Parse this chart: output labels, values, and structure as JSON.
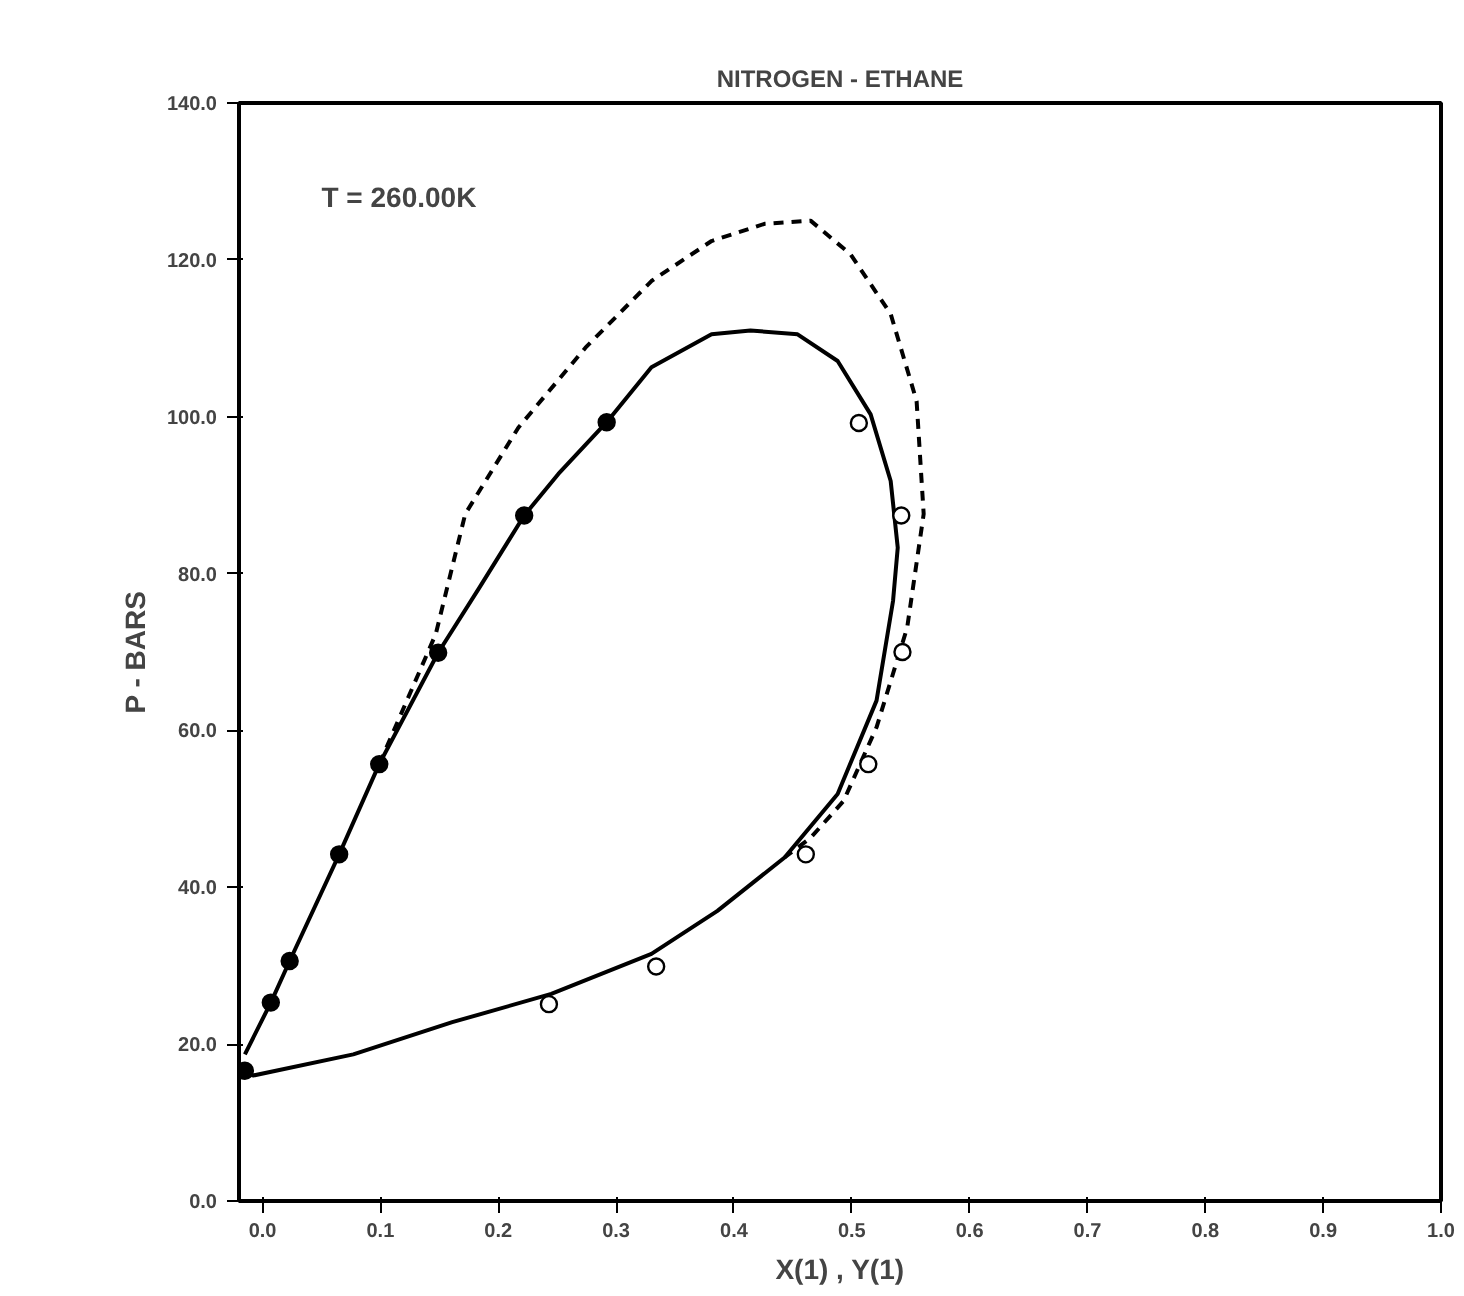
{
  "chart_data": {
    "type": "line",
    "title": "NITROGEN - ETHANE",
    "xlabel": "X(1) , Y(1)",
    "ylabel": "P - BARS",
    "annotations": [
      "T = 260.00K"
    ],
    "xlim": [
      -0.02,
      1.0
    ],
    "ylim": [
      0,
      140
    ],
    "xticks": [
      {
        "value": 0,
        "label": "0.0"
      },
      {
        "value": 0.1,
        "label": "0.1"
      },
      {
        "value": 0.2,
        "label": "0.2"
      },
      {
        "value": 0.3,
        "label": "0.3"
      },
      {
        "value": 0.4,
        "label": "0.4"
      },
      {
        "value": 0.5,
        "label": "0.5"
      },
      {
        "value": 0.6,
        "label": "0.6"
      },
      {
        "value": 0.7,
        "label": "0.7"
      },
      {
        "value": 0.8,
        "label": "0.8"
      },
      {
        "value": 0.9,
        "label": "0.9"
      },
      {
        "value": 1.0,
        "label": "1.0"
      }
    ],
    "yticks": [
      {
        "value": 0,
        "label": "0.0"
      },
      {
        "value": 20,
        "label": "20.0"
      },
      {
        "value": 40,
        "label": "40.0"
      },
      {
        "value": 60,
        "label": "60.0"
      },
      {
        "value": 80,
        "label": "80.0"
      },
      {
        "value": 100,
        "label": "100.0"
      },
      {
        "value": 120,
        "label": "120.0"
      },
      {
        "value": 140,
        "label": "140.0"
      }
    ],
    "grid": false,
    "series": [
      {
        "type": "line",
        "color": "#000000",
        "line_style": "solid",
        "x": [
          -0.015,
          0.007,
          0.023,
          0.065,
          0.099,
          0.149,
          0.184,
          0.222,
          0.251,
          0.292,
          0.33,
          0.381,
          0.414,
          0.454,
          0.488,
          0.516,
          0.533,
          0.539,
          0.535,
          0.521,
          0.488,
          0.443,
          0.386,
          0.33,
          0.245,
          0.161,
          0.077,
          -0.008,
          -0.015
        ],
        "values": [
          18.7,
          25.3,
          30.6,
          44.2,
          55.7,
          69.9,
          78.2,
          87.4,
          92.7,
          99.3,
          106.3,
          110.5,
          111.0,
          110.5,
          107.1,
          100.3,
          91.8,
          83.3,
          76.5,
          63.8,
          51.9,
          43.8,
          37.0,
          31.5,
          26.4,
          22.8,
          18.7,
          16.0,
          16.5
        ]
      },
      {
        "type": "line",
        "color": "#000000",
        "line_style": "dashed",
        "x": [
          0.099,
          0.147,
          0.172,
          0.217,
          0.274,
          0.33,
          0.381,
          0.426,
          0.465,
          0.499,
          0.533,
          0.555,
          0.561,
          0.547,
          0.521,
          0.493,
          0.465,
          0.443
        ],
        "values": [
          55.7,
          72.3,
          87.6,
          98.6,
          108.8,
          117.3,
          122.4,
          124.6,
          125.0,
          120.7,
          113.1,
          102.0,
          87.6,
          73.1,
          60.4,
          51.0,
          46.3,
          43.8
        ]
      },
      {
        "type": "scatter",
        "color": "#000000",
        "marker": "circle",
        "x": [
          -0.015,
          0.007,
          0.023,
          0.065,
          0.099,
          0.149,
          0.222,
          0.292
        ],
        "values": [
          16.6,
          25.3,
          30.6,
          44.2,
          55.7,
          69.9,
          87.4,
          99.3
        ]
      },
      {
        "type": "scatter",
        "color": "#000000",
        "marker": "circle-open",
        "x": [
          0.506,
          0.542,
          0.543,
          0.514,
          0.461,
          0.334,
          0.243
        ],
        "values": [
          99.2,
          87.4,
          70.0,
          55.7,
          44.2,
          29.9,
          25.1
        ]
      }
    ]
  }
}
